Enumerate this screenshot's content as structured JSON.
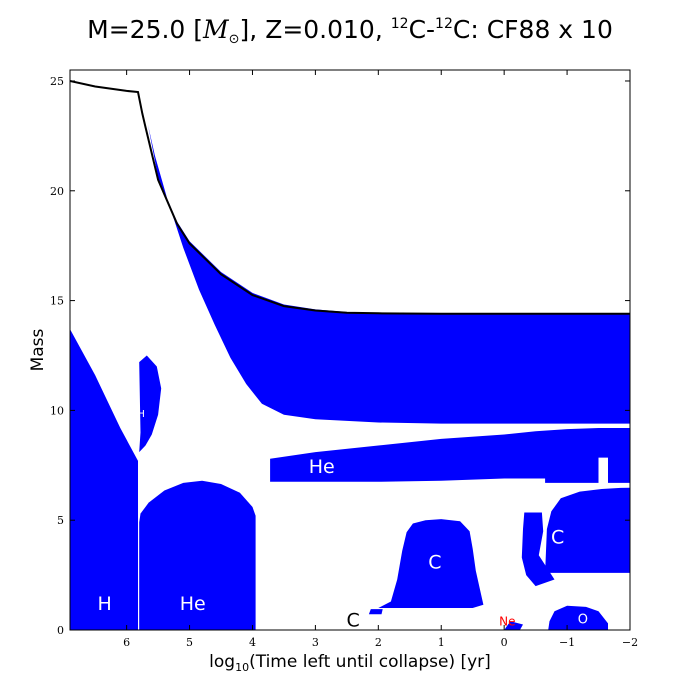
{
  "chart_data": {
    "type": "area",
    "title": {
      "prefix": "M=25.0 [",
      "msym": "M",
      "msub": "⊙",
      "mid": "], Z=0.010, ",
      "sup1": "12",
      "c1": "C-",
      "sup2": "12",
      "c2": "C: CF88 x 10"
    },
    "xlabel": {
      "pre": "log",
      "sub": "10",
      "post": "(Time left until collapse) [yr]"
    },
    "ylabel": "Mass",
    "xlim": [
      6.9,
      -2
    ],
    "ylim": [
      0,
      25.5
    ],
    "x_ticks": [
      6,
      5,
      4,
      3,
      2,
      1,
      0,
      -1,
      -2
    ],
    "x_tick_labels": [
      "6",
      "5",
      "4",
      "3",
      "2",
      "1",
      "0",
      "−1",
      "−2"
    ],
    "y_ticks": [
      0,
      5,
      10,
      15,
      20,
      25
    ],
    "y_tick_labels": [
      "0",
      "5",
      "10",
      "15",
      "20",
      "25"
    ],
    "grid": false,
    "colors": {
      "convective": "#0000ff",
      "mass_line": "#000000",
      "ne_label": "#ff0000"
    },
    "total_mass": [
      [
        6.9,
        25.0
      ],
      [
        6.5,
        24.75
      ],
      [
        6.0,
        24.55
      ],
      [
        5.82,
        24.5
      ],
      [
        5.75,
        23.5
      ],
      [
        5.7,
        22.9
      ],
      [
        5.5,
        20.5
      ],
      [
        5.2,
        18.5
      ],
      [
        5.0,
        17.6
      ],
      [
        4.5,
        16.2
      ],
      [
        4.0,
        15.25
      ],
      [
        3.5,
        14.75
      ],
      [
        3.0,
        14.55
      ],
      [
        2.5,
        14.45
      ],
      [
        2.0,
        14.42
      ],
      [
        1.0,
        14.4
      ],
      [
        0.0,
        14.4
      ],
      [
        -2.0,
        14.4
      ]
    ],
    "zones": [
      {
        "id": "h-core",
        "label": "H",
        "label_x": 6.35,
        "label_y": 0.9,
        "label_size": 19,
        "outline": [
          [
            6.9,
            0
          ],
          [
            5.82,
            0
          ],
          [
            5.82,
            7.7
          ],
          [
            6.1,
            9.2
          ],
          [
            6.5,
            11.6
          ],
          [
            6.9,
            13.7
          ]
        ]
      },
      {
        "id": "h-shell-small",
        "label": "H",
        "label_x": 5.77,
        "label_y": 9.7,
        "label_size": 10,
        "outline": [
          [
            5.8,
            8.1
          ],
          [
            5.78,
            9.0
          ],
          [
            5.8,
            12.2
          ],
          [
            5.68,
            12.5
          ],
          [
            5.52,
            12.0
          ],
          [
            5.45,
            11.0
          ],
          [
            5.5,
            9.8
          ],
          [
            5.6,
            8.9
          ],
          [
            5.7,
            8.4
          ]
        ]
      },
      {
        "id": "he-core",
        "label": "He",
        "label_x": 4.95,
        "label_y": 0.9,
        "label_size": 19,
        "outline": [
          [
            5.8,
            0
          ],
          [
            3.95,
            0
          ],
          [
            3.95,
            5.2
          ],
          [
            4.0,
            5.6
          ],
          [
            4.2,
            6.25
          ],
          [
            4.5,
            6.65
          ],
          [
            4.8,
            6.8
          ],
          [
            5.1,
            6.7
          ],
          [
            5.4,
            6.35
          ],
          [
            5.65,
            5.8
          ],
          [
            5.78,
            5.3
          ],
          [
            5.8,
            4.9
          ]
        ]
      },
      {
        "id": "envelope",
        "label": "",
        "label_x": 0,
        "label_y": 0,
        "label_size": 0,
        "outline": [
          [
            5.66,
            23.0
          ],
          [
            5.5,
            20.6
          ],
          [
            5.2,
            18.6
          ],
          [
            5.0,
            17.7
          ],
          [
            4.5,
            16.3
          ],
          [
            4.0,
            15.35
          ],
          [
            3.5,
            14.82
          ],
          [
            3.0,
            14.6
          ],
          [
            2.5,
            14.48
          ],
          [
            2.0,
            14.43
          ],
          [
            -2.0,
            14.4
          ],
          [
            -2.0,
            9.4
          ],
          [
            0.0,
            9.4
          ],
          [
            1.0,
            9.4
          ],
          [
            2.0,
            9.45
          ],
          [
            3.0,
            9.6
          ],
          [
            3.5,
            9.8
          ],
          [
            3.85,
            10.3
          ],
          [
            4.1,
            11.2
          ],
          [
            4.35,
            12.4
          ],
          [
            4.6,
            13.9
          ],
          [
            4.85,
            15.5
          ],
          [
            5.1,
            17.4
          ],
          [
            5.35,
            19.6
          ],
          [
            5.55,
            21.6
          ],
          [
            5.66,
            23.0
          ]
        ]
      },
      {
        "id": "he-shell",
        "label": "He",
        "label_x": 2.9,
        "label_y": 7.15,
        "label_size": 19,
        "outline": [
          [
            3.72,
            6.75
          ],
          [
            3.72,
            7.8
          ],
          [
            3.0,
            8.1
          ],
          [
            2.0,
            8.4
          ],
          [
            1.0,
            8.7
          ],
          [
            0.0,
            8.9
          ],
          [
            -0.5,
            9.05
          ],
          [
            -1.0,
            9.15
          ],
          [
            -1.5,
            9.2
          ],
          [
            -2.0,
            9.2
          ],
          [
            -2.0,
            6.7
          ],
          [
            -1.65,
            6.7
          ],
          [
            -1.65,
            7.85
          ],
          [
            -1.5,
            7.85
          ],
          [
            -1.5,
            6.7
          ],
          [
            -0.65,
            6.7
          ],
          [
            -0.65,
            6.9
          ],
          [
            0.0,
            6.9
          ],
          [
            1.0,
            6.8
          ],
          [
            2.0,
            6.75
          ],
          [
            3.0,
            6.75
          ]
        ]
      },
      {
        "id": "c-core",
        "label": "C",
        "label_x": 1.1,
        "label_y": 2.8,
        "label_size": 19,
        "outline": [
          [
            2.0,
            1.0
          ],
          [
            1.8,
            1.3
          ],
          [
            1.7,
            2.3
          ],
          [
            1.62,
            3.6
          ],
          [
            1.55,
            4.45
          ],
          [
            1.45,
            4.85
          ],
          [
            1.25,
            5.0
          ],
          [
            1.0,
            5.05
          ],
          [
            0.7,
            4.95
          ],
          [
            0.55,
            4.5
          ],
          [
            0.5,
            3.7
          ],
          [
            0.45,
            2.7
          ],
          [
            0.38,
            1.8
          ],
          [
            0.33,
            1.15
          ],
          [
            0.5,
            1.0
          ],
          [
            1.0,
            1.0
          ],
          [
            1.5,
            1.0
          ]
        ]
      },
      {
        "id": "c-shell",
        "label": "C",
        "label_x": -0.85,
        "label_y": 3.95,
        "label_size": 19,
        "outline": [
          [
            -0.65,
            2.6
          ],
          [
            -0.68,
            4.6
          ],
          [
            -0.75,
            5.4
          ],
          [
            -0.9,
            6.0
          ],
          [
            -1.2,
            6.3
          ],
          [
            -1.55,
            6.42
          ],
          [
            -1.85,
            6.47
          ],
          [
            -2.0,
            6.48
          ],
          [
            -2.0,
            2.6
          ]
        ]
      },
      {
        "id": "c-shell-early",
        "label": "",
        "label_x": 0,
        "label_y": 0,
        "label_size": 0,
        "outline": [
          [
            -0.3,
            4.6
          ],
          [
            -0.32,
            5.35
          ],
          [
            -0.6,
            5.35
          ],
          [
            -0.62,
            4.5
          ],
          [
            -0.55,
            3.4
          ],
          [
            -0.8,
            2.3
          ],
          [
            -0.5,
            2.0
          ],
          [
            -0.35,
            2.5
          ],
          [
            -0.28,
            3.3
          ]
        ]
      },
      {
        "id": "o-core",
        "label": "O",
        "label_x": -1.25,
        "label_y": 0.3,
        "label_size": 13,
        "outline": [
          [
            -0.7,
            0
          ],
          [
            -1.65,
            0
          ],
          [
            -1.65,
            0.3
          ],
          [
            -1.5,
            0.85
          ],
          [
            -1.3,
            1.05
          ],
          [
            -1.0,
            1.1
          ],
          [
            -0.8,
            0.85
          ],
          [
            -0.72,
            0.4
          ]
        ]
      },
      {
        "id": "carbon-marker",
        "label": "C",
        "label_x": 2.4,
        "label_y": 0.15,
        "label_size": 19,
        "outline": [
          [
            2.15,
            0.72
          ],
          [
            1.95,
            0.72
          ],
          [
            1.93,
            0.95
          ],
          [
            2.12,
            0.95
          ]
        ]
      },
      {
        "id": "neon-burning",
        "label": "Ne",
        "label_x": -0.05,
        "label_y": 0.2,
        "label_size": 12,
        "outline": [
          [
            0.0,
            0.0
          ],
          [
            -0.25,
            0.0
          ],
          [
            -0.3,
            0.25
          ],
          [
            -0.1,
            0.4
          ]
        ]
      }
    ]
  }
}
